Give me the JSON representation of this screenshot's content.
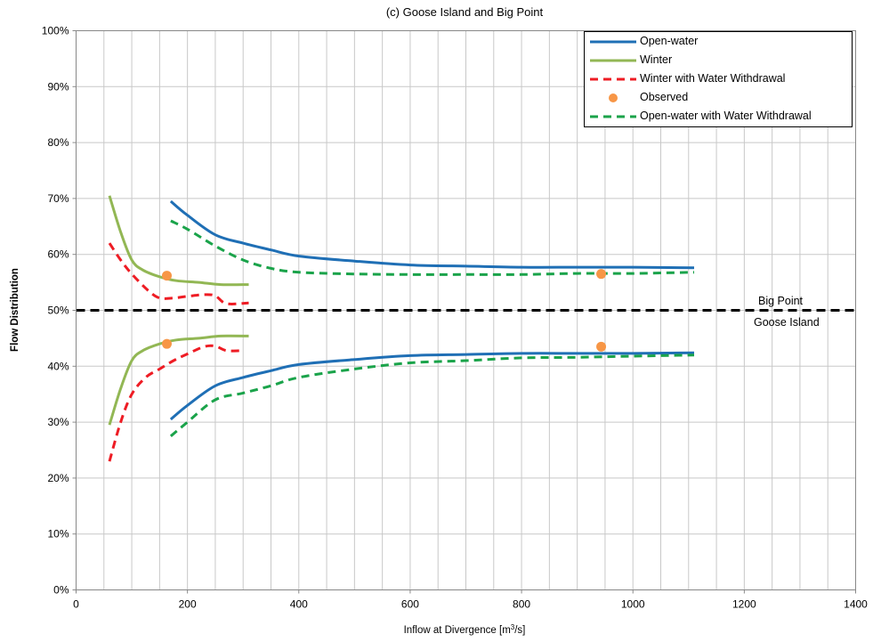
{
  "chart_data": {
    "type": "line",
    "title": "(c) Goose Island and Big Point",
    "xlabel": "Inflow at Divergence [m³/s]",
    "xlabel_parts": {
      "before": "Inflow at Divergence [m",
      "sup": "3",
      "after": "/s]"
    },
    "ylabel": "Flow Distribution",
    "xlim": [
      0,
      1400
    ],
    "ylim": [
      0,
      100
    ],
    "x_ticks": [
      0,
      200,
      400,
      600,
      800,
      1000,
      1200,
      1400
    ],
    "y_ticks": [
      0,
      10,
      20,
      30,
      40,
      50,
      60,
      70,
      80,
      90,
      100
    ],
    "y_tick_labels": [
      "0%",
      "10%",
      "20%",
      "30%",
      "40%",
      "50%",
      "60%",
      "70%",
      "80%",
      "90%",
      "100%"
    ],
    "x_minor_gridlines_every": 50,
    "grid": true,
    "legend_position": "top-right",
    "series": [
      {
        "name": "Open-water",
        "color": "#1f6fb5",
        "style": "solid",
        "legend": true,
        "x": [
          170,
          200,
          250,
          300,
          350,
          400,
          500,
          600,
          700,
          800,
          900,
          1000,
          1110
        ],
        "y": [
          69.5,
          67,
          63.5,
          62,
          60.8,
          59.7,
          58.8,
          58.1,
          57.9,
          57.7,
          57.7,
          57.7,
          57.6
        ]
      },
      {
        "name": "Open-water",
        "color": "#1f6fb5",
        "style": "solid",
        "legend": false,
        "x": [
          170,
          200,
          250,
          300,
          350,
          400,
          500,
          600,
          700,
          800,
          900,
          1000,
          1110
        ],
        "y": [
          30.5,
          33,
          36.5,
          38,
          39.2,
          40.3,
          41.2,
          41.9,
          42.1,
          42.3,
          42.3,
          42.3,
          42.4
        ]
      },
      {
        "name": "Winter",
        "color": "#92b754",
        "style": "solid",
        "legend": true,
        "x": [
          60,
          80,
          100,
          120,
          150,
          180,
          220,
          260,
          310
        ],
        "y": [
          70.5,
          64,
          59,
          57.2,
          56,
          55.3,
          55,
          54.6,
          54.6
        ]
      },
      {
        "name": "Winter",
        "color": "#92b754",
        "style": "solid",
        "legend": false,
        "x": [
          60,
          80,
          100,
          120,
          150,
          180,
          220,
          260,
          310
        ],
        "y": [
          29.5,
          36,
          41,
          42.8,
          44,
          44.7,
          45,
          45.4,
          45.4
        ]
      },
      {
        "name": "Winter with Water Withdrawal",
        "color": "#ee1c24",
        "style": "dashed",
        "legend": true,
        "x": [
          60,
          80,
          100,
          130,
          150,
          175,
          200,
          230,
          250,
          270,
          310
        ],
        "y": [
          62,
          59,
          56.5,
          53.5,
          52.2,
          52.2,
          52.5,
          52.8,
          52.6,
          51.2,
          51.3
        ]
      },
      {
        "name": "Winter with Water Withdrawal",
        "color": "#ee1c24",
        "style": "dashed",
        "legend": false,
        "x": [
          60,
          80,
          100,
          125,
          150,
          175,
          200,
          230,
          250,
          270,
          300
        ],
        "y": [
          23,
          30,
          35,
          38,
          39.5,
          41,
          42.2,
          43.5,
          43.6,
          42.8,
          42.8
        ]
      },
      {
        "name": "Open-water with Water Withdrawal",
        "color": "#1aa34a",
        "style": "dashed",
        "legend": true,
        "x": [
          170,
          200,
          250,
          300,
          350,
          400,
          500,
          600,
          700,
          800,
          900,
          1000,
          1110
        ],
        "y": [
          66,
          64.5,
          61.5,
          59,
          57.5,
          56.8,
          56.5,
          56.4,
          56.4,
          56.4,
          56.6,
          56.6,
          56.8
        ]
      },
      {
        "name": "Open-water with Water Withdrawal",
        "color": "#1aa34a",
        "style": "dashed",
        "legend": false,
        "x": [
          170,
          200,
          250,
          300,
          350,
          400,
          500,
          600,
          700,
          800,
          900,
          1000,
          1110
        ],
        "y": [
          27.5,
          30,
          34,
          35.2,
          36.5,
          38,
          39.5,
          40.6,
          41,
          41.5,
          41.6,
          41.8,
          42
        ]
      }
    ],
    "observed": {
      "name": "Observed",
      "color": "#f79646",
      "x": [
        163,
        163,
        943,
        943
      ],
      "y": [
        56.2,
        44,
        56.5,
        43.5
      ]
    },
    "reference_line": {
      "y": 50,
      "color": "#000000",
      "style": "dashed"
    },
    "annotations": {
      "upper": "Big Point",
      "lower": "Goose Island"
    },
    "legend_order": [
      "Open-water",
      "Winter",
      "Winter with Water Withdrawal",
      "Observed",
      "Open-water with Water Withdrawal"
    ]
  }
}
